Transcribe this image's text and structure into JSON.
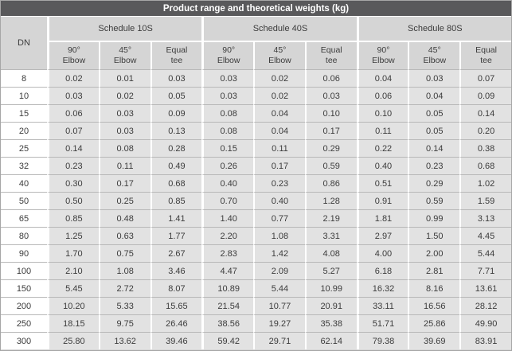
{
  "title": "Product range and theoretical weights (kg)",
  "colors": {
    "title_bar_bg": "#59595b",
    "title_text": "#ffffff",
    "header_bg": "#d5d5d5",
    "cell_bg": "#e2e2e2",
    "dn_cell_bg": "#ffffff",
    "text": "#3c3c3c",
    "row_line": "#b8b8b8",
    "separator": "#ffffff",
    "outer_border": "#a6a6a6"
  },
  "table": {
    "dn_header": "DN",
    "groups": [
      "Schedule 10S",
      "Schedule 40S",
      "Schedule 80S"
    ],
    "sub_headers": [
      "90°\nElbow",
      "45°\nElbow",
      "Equal\ntee"
    ],
    "rows": [
      {
        "dn": "8",
        "values": [
          "0.02",
          "0.01",
          "0.03",
          "0.03",
          "0.02",
          "0.06",
          "0.04",
          "0.03",
          "0.07"
        ]
      },
      {
        "dn": "10",
        "values": [
          "0.03",
          "0.02",
          "0.05",
          "0.03",
          "0.02",
          "0.03",
          "0.06",
          "0.04",
          "0.09"
        ]
      },
      {
        "dn": "15",
        "values": [
          "0.06",
          "0.03",
          "0.09",
          "0.08",
          "0.04",
          "0.10",
          "0.10",
          "0.05",
          "0.14"
        ]
      },
      {
        "dn": "20",
        "values": [
          "0.07",
          "0.03",
          "0.13",
          "0.08",
          "0.04",
          "0.17",
          "0.11",
          "0.05",
          "0.20"
        ]
      },
      {
        "dn": "25",
        "values": [
          "0.14",
          "0.08",
          "0.28",
          "0.15",
          "0.11",
          "0.29",
          "0.22",
          "0.14",
          "0.38"
        ]
      },
      {
        "dn": "32",
        "values": [
          "0.23",
          "0.11",
          "0.49",
          "0.26",
          "0.17",
          "0.59",
          "0.40",
          "0.23",
          "0.68"
        ]
      },
      {
        "dn": "40",
        "values": [
          "0.30",
          "0.17",
          "0.68",
          "0.40",
          "0.23",
          "0.86",
          "0.51",
          "0.29",
          "1.02"
        ]
      },
      {
        "dn": "50",
        "values": [
          "0.50",
          "0.25",
          "0.85",
          "0.70",
          "0.40",
          "1.28",
          "0.91",
          "0.59",
          "1.59"
        ]
      },
      {
        "dn": "65",
        "values": [
          "0.85",
          "0.48",
          "1.41",
          "1.40",
          "0.77",
          "2.19",
          "1.81",
          "0.99",
          "3.13"
        ]
      },
      {
        "dn": "80",
        "values": [
          "1.25",
          "0.63",
          "1.77",
          "2.20",
          "1.08",
          "3.31",
          "2.97",
          "1.50",
          "4.45"
        ]
      },
      {
        "dn": "90",
        "values": [
          "1.70",
          "0.75",
          "2.67",
          "2.83",
          "1.42",
          "4.08",
          "4.00",
          "2.00",
          "5.44"
        ]
      },
      {
        "dn": "100",
        "values": [
          "2.10",
          "1.08",
          "3.46",
          "4.47",
          "2.09",
          "5.27",
          "6.18",
          "2.81",
          "7.71"
        ]
      },
      {
        "dn": "150",
        "values": [
          "5.45",
          "2.72",
          "8.07",
          "10.89",
          "5.44",
          "10.99",
          "16.32",
          "8.16",
          "13.61"
        ]
      },
      {
        "dn": "200",
        "values": [
          "10.20",
          "5.33",
          "15.65",
          "21.54",
          "10.77",
          "20.91",
          "33.11",
          "16.56",
          "28.12"
        ]
      },
      {
        "dn": "250",
        "values": [
          "18.15",
          "9.75",
          "26.46",
          "38.56",
          "19.27",
          "35.38",
          "51.71",
          "25.86",
          "49.90"
        ]
      },
      {
        "dn": "300",
        "values": [
          "25.80",
          "13.62",
          "39.46",
          "59.42",
          "29.71",
          "62.14",
          "79.38",
          "39.69",
          "83.91"
        ]
      }
    ]
  }
}
